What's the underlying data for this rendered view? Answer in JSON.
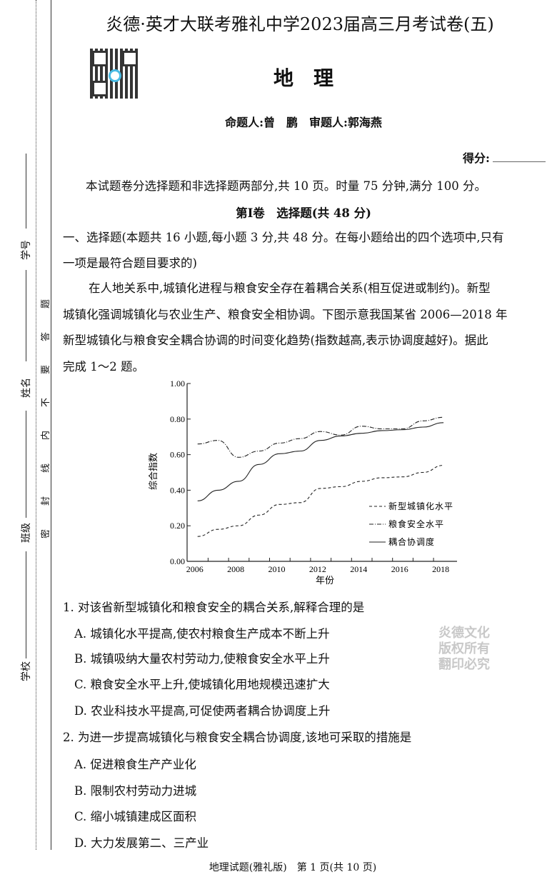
{
  "header": {
    "title": "炎德·英才大联考雅礼中学2023届高三月考试卷(五)",
    "subject": "地　理",
    "authors": "命题人:曾　鹏　审题人:郭海燕",
    "score_label": "得分:"
  },
  "margin": {
    "fields": [
      "学号",
      "姓名",
      "班级",
      "学校"
    ],
    "seal_text": [
      "密",
      "封",
      "线",
      "内",
      "不",
      "要",
      "答",
      "题"
    ]
  },
  "intro": "本试题卷分选择题和非选择题两部分,共 10 页。时量 75 分钟,满分 100 分。",
  "section_title": "第Ⅰ卷　选择题(共 48 分)",
  "instructions": [
    "一、选择题(本题共 16 小题,每小题 3 分,共 48 分。在每小题给出的四个选项中,只有",
    "一项是最符合题目要求的)"
  ],
  "passage": [
    "在人地关系中,城镇化进程与粮食安全存在着耦合关系(相互促进或制约)。新型",
    "城镇化强调城镇化与农业生产、粮食安全相协调。下图示意我国某省 2006—2018 年",
    "新型城镇化与粮食安全耦合协调的时间变化趋势(指数越高,表示协调度越好)。据此",
    "完成 1～2 题。"
  ],
  "chart_data": {
    "type": "line",
    "title": "",
    "xlabel": "年份",
    "ylabel": "综合指数",
    "x": [
      2006,
      2007,
      2008,
      2009,
      2010,
      2011,
      2012,
      2013,
      2014,
      2015,
      2016,
      2017,
      2018
    ],
    "xticks": [
      "2006",
      "2008",
      "2010",
      "2012",
      "2014",
      "2016",
      "2018"
    ],
    "yticks": [
      "0.00",
      "0.20",
      "0.40",
      "0.60",
      "0.80",
      "1.00"
    ],
    "ylim": [
      0,
      1
    ],
    "grid": false,
    "legend_position": "right",
    "series": [
      {
        "name": "新型城镇化水平",
        "style": "dashed",
        "values": [
          0.14,
          0.18,
          0.2,
          0.26,
          0.32,
          0.33,
          0.41,
          0.42,
          0.45,
          0.47,
          0.475,
          0.5,
          0.54
        ]
      },
      {
        "name": "粮食安全水平",
        "style": "dash-dot",
        "values": [
          0.66,
          0.68,
          0.585,
          0.62,
          0.665,
          0.69,
          0.73,
          0.71,
          0.76,
          0.745,
          0.745,
          0.79,
          0.81
        ]
      },
      {
        "name": "耦合协调度",
        "style": "solid",
        "values": [
          0.34,
          0.4,
          0.45,
          0.545,
          0.605,
          0.62,
          0.68,
          0.705,
          0.72,
          0.735,
          0.74,
          0.755,
          0.78
        ]
      }
    ]
  },
  "questions": [
    {
      "stem": "1. 对该省新型城镇化和粮食安全的耦合关系,解释合理的是",
      "options": [
        "A. 城镇化水平提高,使农村粮食生产成本不断上升",
        "B. 城镇吸纳大量农村劳动力,使粮食安全水平上升",
        "C. 粮食安全水平上升,使城镇化用地规模迅速扩大",
        "D. 农业科技水平提高,可促使两者耦合协调度上升"
      ]
    },
    {
      "stem": "2. 为进一步提高城镇化与粮食安全耦合协调度,该地可采取的措施是",
      "options": [
        "A. 促进粮食生产产业化",
        "B. 限制农村劳动力进城",
        "C. 缩小城镇建成区面积",
        "D. 大力发展第二、三产业"
      ]
    }
  ],
  "footer": "地理试题(雅礼版)　第 1 页(共 10 页)",
  "watermark": "炎德文化",
  "stamp": [
    "炎德文化",
    "版权所有",
    "翻印必究"
  ]
}
